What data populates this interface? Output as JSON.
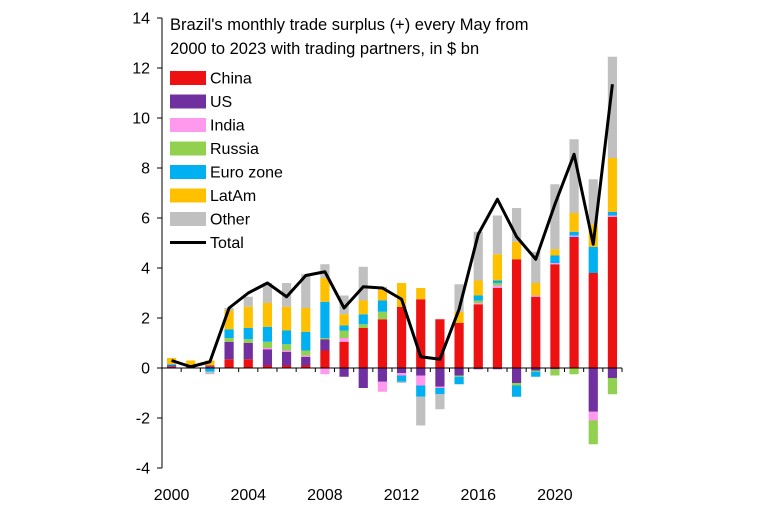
{
  "chart_data": {
    "type": "bar",
    "subtype": "stacked-with-line",
    "title_lines": [
      "Brazil's monthly trade surplus (+)  every May from",
      "2000 to 2023 with trading partners, in $ bn"
    ],
    "xlabel": "",
    "ylabel": "",
    "ylim": [
      -4,
      14
    ],
    "y_ticks": [
      "14",
      "12",
      "10",
      "8",
      "6",
      "4",
      "2",
      "0",
      "-2",
      "-4"
    ],
    "x_ticks": [
      "2000",
      "2004",
      "2008",
      "2012",
      "2016",
      "2020"
    ],
    "grid": false,
    "legend_position": "top-left",
    "categories": [
      "2000",
      "2001",
      "2002",
      "2003",
      "2004",
      "2005",
      "2006",
      "2007",
      "2008",
      "2009",
      "2010",
      "2011",
      "2012",
      "2013",
      "2014",
      "2015",
      "2016",
      "2017",
      "2018",
      "2019",
      "2020",
      "2021",
      "2022",
      "2023"
    ],
    "series": [
      {
        "name": "China",
        "color": "#ee1111",
        "values": [
          0.05,
          0.05,
          0.05,
          0.35,
          0.35,
          0.1,
          0.1,
          0.1,
          0.7,
          1.05,
          1.6,
          1.95,
          2.45,
          2.75,
          1.95,
          1.8,
          2.55,
          3.2,
          4.35,
          2.85,
          4.15,
          5.2,
          3.8,
          6.05
        ]
      },
      {
        "name": "US",
        "color": "#7030a0",
        "values": [
          0.05,
          0.0,
          0.05,
          0.7,
          0.65,
          0.65,
          0.55,
          0.35,
          0.45,
          -0.35,
          -0.8,
          -0.55,
          -0.2,
          -0.3,
          -0.75,
          -0.3,
          -0.05,
          -0.05,
          -0.6,
          -0.1,
          -0.05,
          0.05,
          -1.75,
          -0.4
        ]
      },
      {
        "name": "India",
        "color": "#ff99ee",
        "values": [
          0.0,
          0.0,
          0.0,
          0.0,
          0.0,
          0.05,
          0.05,
          0.05,
          -0.25,
          0.15,
          0.0,
          -0.4,
          -0.1,
          -0.4,
          -0.05,
          0.0,
          0.05,
          0.1,
          0.0,
          0.05,
          0.05,
          0.05,
          -0.35,
          0.05
        ]
      },
      {
        "name": "Russia",
        "color": "#92d050",
        "values": [
          0.0,
          0.0,
          0.0,
          0.15,
          0.15,
          0.25,
          0.25,
          0.2,
          0.05,
          0.3,
          0.15,
          0.3,
          0.0,
          0.0,
          0.0,
          -0.05,
          0.1,
          0.1,
          -0.1,
          -0.05,
          -0.25,
          -0.25,
          -0.95,
          -0.65
        ]
      },
      {
        "name": "Euro zone",
        "color": "#00b0f0",
        "values": [
          0.05,
          0.05,
          -0.15,
          0.35,
          0.45,
          0.6,
          0.55,
          0.75,
          1.45,
          0.2,
          0.4,
          0.45,
          -0.25,
          -0.45,
          -0.25,
          -0.3,
          0.2,
          0.1,
          -0.45,
          -0.2,
          0.3,
          0.15,
          1.05,
          0.15
        ]
      },
      {
        "name": "LatAm",
        "color": "#ffc000",
        "values": [
          0.25,
          0.2,
          0.2,
          0.75,
          0.85,
          0.95,
          0.95,
          0.95,
          0.95,
          0.45,
          0.55,
          0.45,
          0.95,
          0.45,
          0.0,
          0.45,
          0.6,
          1.05,
          0.7,
          0.5,
          0.25,
          0.75,
          0.9,
          2.15
        ]
      },
      {
        "name": "Other",
        "color": "#c0c0c0",
        "values": [
          0.0,
          0.0,
          -0.1,
          0.1,
          0.4,
          0.8,
          0.95,
          1.35,
          0.55,
          0.75,
          1.35,
          0.1,
          -0.05,
          -1.15,
          -0.6,
          1.1,
          1.95,
          1.55,
          1.35,
          1.25,
          2.6,
          2.95,
          1.8,
          4.05
        ]
      }
    ],
    "line": {
      "name": "Total",
      "color": "#000000",
      "values": [
        0.3,
        0.05,
        0.25,
        2.4,
        3.0,
        3.4,
        2.85,
        3.7,
        3.85,
        2.4,
        3.25,
        3.2,
        2.75,
        0.45,
        0.35,
        2.35,
        5.35,
        6.75,
        5.25,
        4.35,
        6.55,
        8.55,
        4.95,
        11.35
      ]
    }
  }
}
